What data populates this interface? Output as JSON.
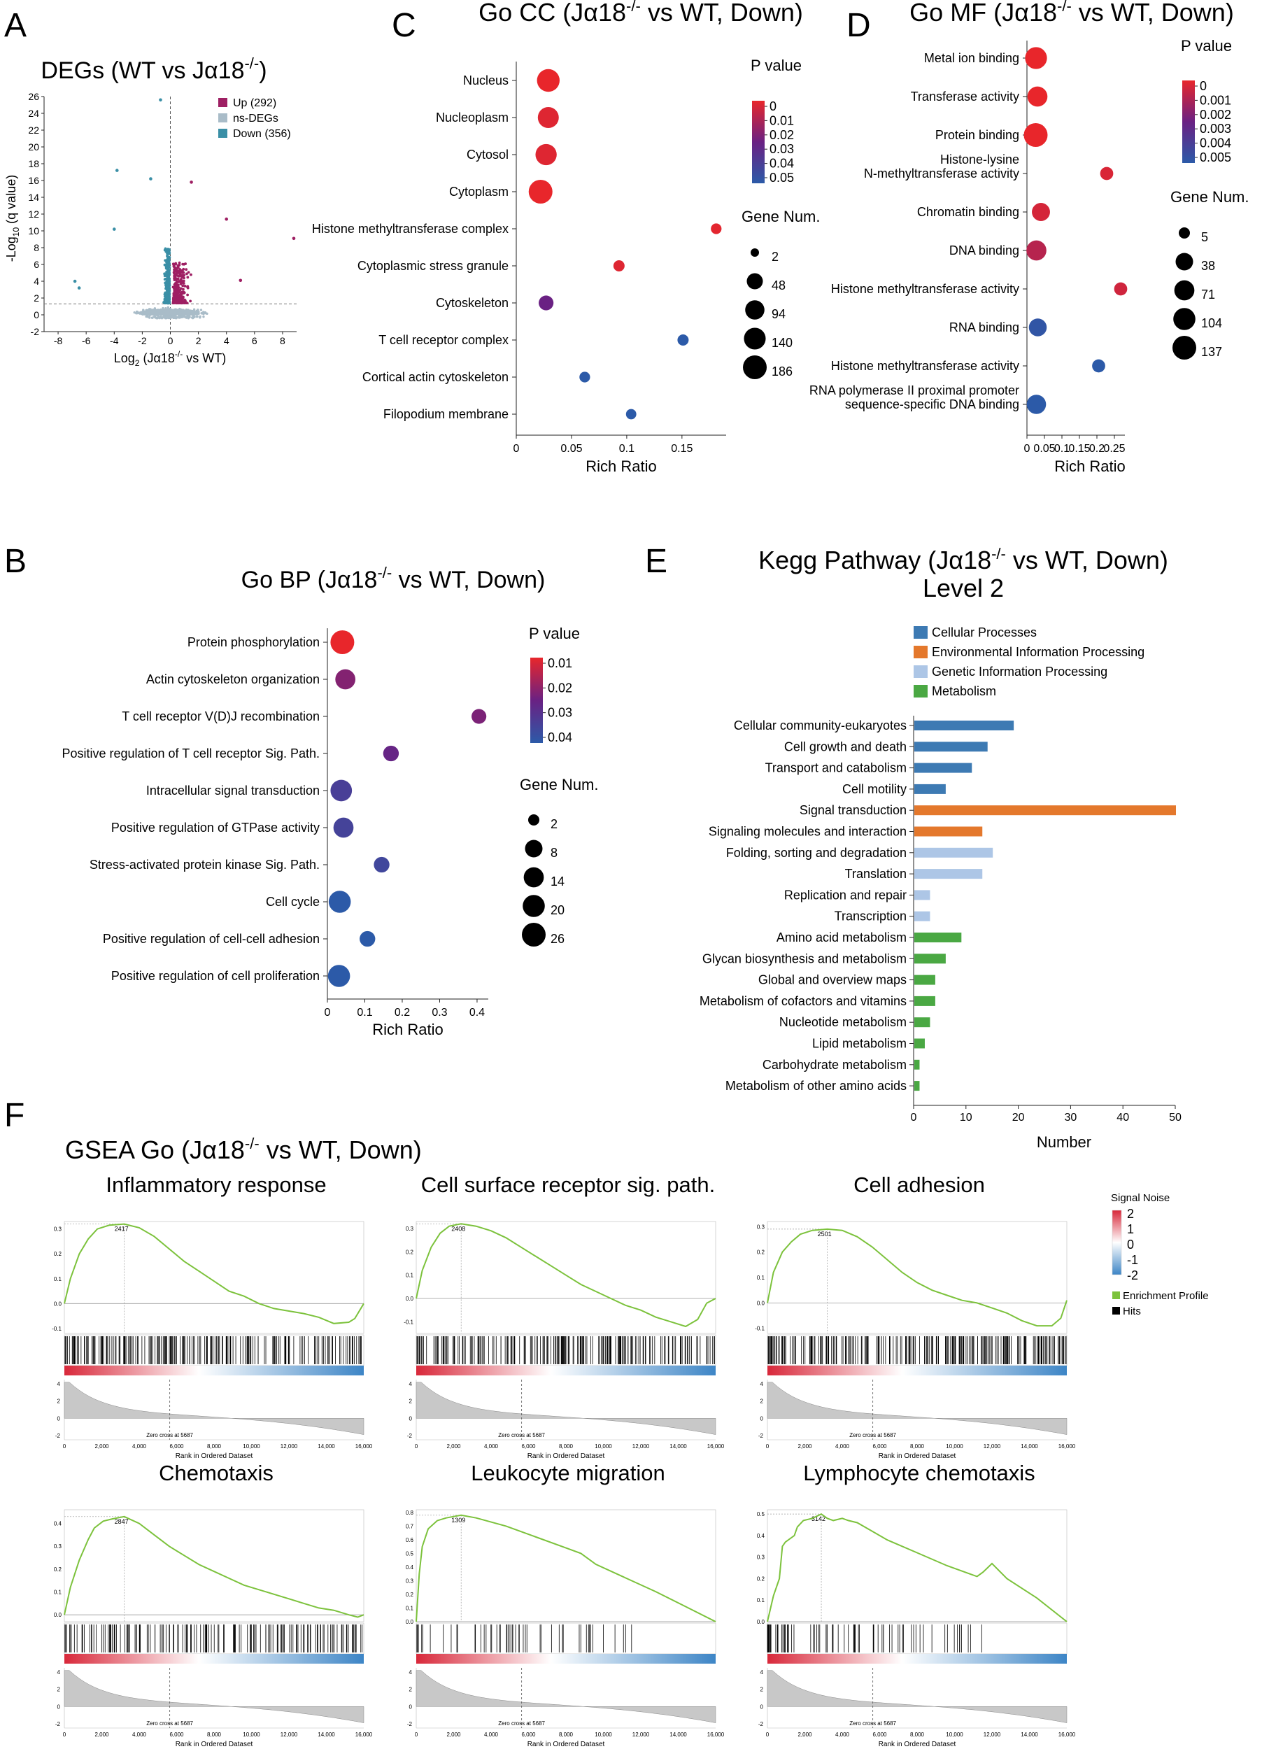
{
  "figure": {
    "panel_letters": [
      "A",
      "B",
      "C",
      "D",
      "E",
      "F"
    ]
  },
  "colors": {
    "up": "#9e1f63",
    "ns": "#a9bcc8",
    "down": "#3a8fa6",
    "cellular": "#3d7ab3",
    "environmental": "#e4782c",
    "genetic": "#adc6e6",
    "metabolism": "#4aa843",
    "enrichment": "#7cc23c",
    "red": "#e8262b",
    "blue": "#2c4f9e",
    "purple": "#6a2183"
  },
  "chart_data": [
    {
      "id": "A",
      "type": "scatter",
      "title": "DEGs (WT vs Jα18",
      "title_sup": "-/-",
      "title_end": ")",
      "xlabel_pre": "Log",
      "xlabel_sub": "2",
      "xlabel_post": " (Jα18",
      "xlabel_sup": "-/-",
      "xlabel_end": " vs WT)",
      "ylabel_pre": "-Log",
      "ylabel_sub": "10",
      "ylabel_post": " (q value)",
      "xlim": [
        -9,
        9
      ],
      "ylim": [
        -2,
        26
      ],
      "xticks": [
        -8,
        -6,
        -4,
        -2,
        0,
        2,
        4,
        6,
        8
      ],
      "yticks": [
        -2,
        0,
        2,
        4,
        6,
        8,
        10,
        12,
        14,
        16,
        18,
        20,
        22,
        24,
        26
      ],
      "threshold_y": 1.3,
      "legend": [
        {
          "key": "up",
          "label": "Up (292)"
        },
        {
          "key": "ns",
          "label": "ns-DEGs"
        },
        {
          "key": "down",
          "label": "Down (356)"
        }
      ],
      "counts": {
        "up": 292,
        "down": 356
      },
      "highlight_points": [
        {
          "x": -0.7,
          "y": 25.6,
          "group": "down"
        },
        {
          "x": -3.8,
          "y": 17.2,
          "group": "down"
        },
        {
          "x": -1.4,
          "y": 16.2,
          "group": "down"
        },
        {
          "x": -4.0,
          "y": 10.2,
          "group": "down"
        },
        {
          "x": -6.8,
          "y": 4.0,
          "group": "down"
        },
        {
          "x": -6.5,
          "y": 3.2,
          "group": "down"
        },
        {
          "x": 1.5,
          "y": 15.8,
          "group": "up"
        },
        {
          "x": 4.0,
          "y": 11.4,
          "group": "up"
        },
        {
          "x": 8.8,
          "y": 9.1,
          "group": "up"
        },
        {
          "x": 5.0,
          "y": 4.1,
          "group": "up"
        }
      ]
    },
    {
      "id": "C",
      "type": "scatter",
      "title": "Go CC (Jα18",
      "title_sup": "-/-",
      "title_end": " vs WT, Down)",
      "xlabel": "Rich Ratio",
      "xlim": [
        0,
        0.19
      ],
      "xticks": [
        0,
        0.05,
        0.1,
        0.15
      ],
      "categories": [
        "Nucleus",
        "Nucleoplasm",
        "Cytosol",
        "Cytoplasm",
        "Histone methyltransferase complex",
        "Cytoplasmic stress granule",
        "Cytoskeleton",
        "T cell receptor complex",
        "Cortical actin cytoskeleton",
        "Filopodium membrane"
      ],
      "values": [
        0.029,
        0.029,
        0.027,
        0.022,
        0.181,
        0.093,
        0.027,
        0.151,
        0.062,
        0.104
      ],
      "p_values": [
        0.0,
        0.002,
        0.002,
        0.0,
        0.001,
        0.002,
        0.025,
        0.05,
        0.05,
        0.05
      ],
      "gene_num": [
        160,
        125,
        130,
        186,
        6,
        8,
        34,
        8,
        6,
        5
      ],
      "color_title": "P value",
      "color_ticks": [
        "0",
        "0.01",
        "0.02",
        "0.03",
        "0.04",
        "0.05"
      ],
      "color_range": [
        0,
        0.05
      ],
      "size_title": "Gene Num.",
      "size_ticks": [
        "2",
        "48",
        "94",
        "140",
        "186"
      ],
      "size_range": [
        2,
        186
      ]
    },
    {
      "id": "D",
      "type": "scatter",
      "title": "Go MF (Jα18",
      "title_sup": "-/-",
      "title_end": " vs WT, Down)",
      "xlabel": "Rich Ratio",
      "xlim": [
        0,
        0.28
      ],
      "xticks": [
        0,
        0.05,
        0.1,
        0.15,
        0.2,
        0.25
      ],
      "xtick_labels": [
        "0",
        "0.05",
        "0.1",
        "0.15",
        "0.2",
        "0.25"
      ],
      "categories": [
        [
          "Metal ion binding"
        ],
        [
          "Transferase activity"
        ],
        [
          "Protein binding"
        ],
        [
          "Histone-lysine",
          "N-methyltransferase activity"
        ],
        [
          "Chromatin binding"
        ],
        [
          "DNA binding"
        ],
        [
          "Histone methyltransferase activity"
        ],
        [
          "RNA binding"
        ],
        [
          "Histone methyltransferase activity"
        ],
        [
          "RNA polymerase II proximal promoter",
          "sequence-specific DNA binding"
        ]
      ],
      "values": [
        0.026,
        0.03,
        0.025,
        0.228,
        0.04,
        0.027,
        0.268,
        0.031,
        0.205,
        0.027
      ],
      "p_values": [
        0.0,
        0.0,
        0.0,
        0.0003,
        0.0004,
        0.001,
        0.0005,
        0.0048,
        0.005,
        0.005
      ],
      "gene_num": [
        100,
        70,
        137,
        8,
        45,
        70,
        8,
        42,
        8,
        60
      ],
      "color_title": "P value",
      "color_ticks": [
        "0",
        "0.001",
        "0.002",
        "0.003",
        "0.004",
        "0.005"
      ],
      "color_range": [
        0,
        0.005
      ],
      "size_title": "Gene Num.",
      "size_ticks": [
        "5",
        "38",
        "71",
        "104",
        "137"
      ],
      "size_range": [
        5,
        137
      ]
    },
    {
      "id": "B",
      "type": "scatter",
      "title": "Go BP (Jα18",
      "title_sup": "-/-",
      "title_end": " vs WT, Down)",
      "xlabel": "Rich Ratio",
      "xlim": [
        0,
        0.43
      ],
      "xticks": [
        0,
        0.1,
        0.2,
        0.3,
        0.4
      ],
      "categories": [
        "Protein phosphorylation",
        "Actin cytoskeleton organization",
        "T cell receptor V(D)J recombination",
        "Positive regulation of T cell receptor Sig. Path.",
        "Intracellular signal transduction",
        "Positive regulation of GTPase activity",
        "Stress-activated protein kinase Sig. Path.",
        "Cell cycle",
        "Positive regulation of cell-cell adhesion",
        "Positive regulation of cell proliferation"
      ],
      "values": [
        0.04,
        0.048,
        0.405,
        0.17,
        0.037,
        0.043,
        0.145,
        0.033,
        0.107,
        0.031
      ],
      "p_values": [
        0.01,
        0.022,
        0.023,
        0.026,
        0.033,
        0.034,
        0.035,
        0.04,
        0.04,
        0.04
      ],
      "gene_num": [
        26,
        14,
        4,
        5,
        18,
        14,
        5,
        20,
        5,
        20
      ],
      "color_title": "P value",
      "color_ticks": [
        "0.01",
        "0.02",
        "0.03",
        "0.04"
      ],
      "color_range": [
        0.01,
        0.04
      ],
      "size_title": "Gene Num.",
      "size_ticks": [
        "2",
        "8",
        "14",
        "20",
        "26"
      ],
      "size_range": [
        2,
        26
      ]
    },
    {
      "id": "E",
      "type": "bar",
      "title": "Kegg Pathway (Jα18",
      "title_sup": "-/-",
      "title_end": " vs WT, Down)",
      "subtitle": "Level 2",
      "xlabel": "Number",
      "xlim": [
        0,
        50
      ],
      "xticks": [
        0,
        10,
        20,
        30,
        40,
        50
      ],
      "legend": [
        {
          "key": "cellular",
          "label": "Cellular Processes"
        },
        {
          "key": "environmental",
          "label": "Environmental Information Processing"
        },
        {
          "key": "genetic",
          "label": "Genetic Information Processing"
        },
        {
          "key": "metabolism",
          "label": "Metabolism"
        }
      ],
      "categories": [
        "Cellular community-eukaryotes",
        "Cell growth and death",
        "Transport and catabolism",
        "Cell motility",
        "Signal transduction",
        "Signaling molecules and interaction",
        "Folding, sorting and degradation",
        "Translation",
        "Replication and repair",
        "Transcription",
        "Amino acid metabolism",
        "Glycan biosynthesis and metabolism",
        "Global and overview maps",
        "Metabolism of cofactors and vitamins",
        "Nucleotide metabolism",
        "Lipid metabolism",
        "Carbohydrate metabolism",
        "Metabolism of other amino acids"
      ],
      "values": [
        19,
        14,
        11,
        6,
        50,
        13,
        15,
        13,
        3,
        3,
        9,
        6,
        4,
        4,
        3,
        2,
        1,
        1
      ],
      "groups": [
        "cellular",
        "cellular",
        "cellular",
        "cellular",
        "environmental",
        "environmental",
        "genetic",
        "genetic",
        "genetic",
        "genetic",
        "metabolism",
        "metabolism",
        "metabolism",
        "metabolism",
        "metabolism",
        "metabolism",
        "metabolism",
        "metabolism"
      ]
    },
    {
      "id": "F",
      "type": "line",
      "title": "GSEA Go (Jα18",
      "title_sup": "-/-",
      "title_end": " vs WT, Down)",
      "rank_xlabel": "Rank in Ordered Dataset",
      "rank_xticks": [
        "0",
        "2,000",
        "4,000",
        "6,000",
        "8,000",
        "10,000",
        "12,000",
        "14,000",
        "16,000"
      ],
      "zero_cross_label": "Zero cross at 5687",
      "metric_yticks": [
        "4",
        "2",
        "0",
        "-2"
      ],
      "legend": {
        "title": "Signal Noise",
        "scale_ticks": [
          "2",
          "1",
          "0",
          "-1",
          "-2"
        ],
        "profile_label": "Enrichment Profile",
        "hits_label": "Hits"
      },
      "series": [
        {
          "name": "Inflammatory response",
          "peak_label": "2417",
          "yticks": [
            "0.3",
            "0.2",
            "0.1",
            "0.0",
            "-0.1"
          ],
          "ylim": [
            -0.12,
            0.33
          ],
          "x": [
            0,
            0.02,
            0.05,
            0.08,
            0.11,
            0.15,
            0.2,
            0.25,
            0.3,
            0.35,
            0.4,
            0.45,
            0.5,
            0.55,
            0.6,
            0.65,
            0.7,
            0.75,
            0.8,
            0.85,
            0.9,
            0.95,
            0.97,
            1.0
          ],
          "y": [
            0,
            0.1,
            0.2,
            0.26,
            0.3,
            0.315,
            0.32,
            0.305,
            0.27,
            0.22,
            0.17,
            0.13,
            0.09,
            0.05,
            0.03,
            0.0,
            -0.02,
            -0.03,
            -0.04,
            -0.055,
            -0.08,
            -0.075,
            -0.06,
            0.0
          ],
          "hit_density": 0.85
        },
        {
          "name": "Cell surface receptor sig. path.",
          "peak_label": "2408",
          "yticks": [
            "0.3",
            "0.2",
            "0.1",
            "0.0",
            "-0.1"
          ],
          "ylim": [
            -0.15,
            0.33
          ],
          "x": [
            0,
            0.02,
            0.05,
            0.08,
            0.11,
            0.15,
            0.2,
            0.25,
            0.3,
            0.35,
            0.4,
            0.45,
            0.5,
            0.55,
            0.6,
            0.65,
            0.7,
            0.75,
            0.8,
            0.85,
            0.9,
            0.94,
            0.97,
            1.0
          ],
          "y": [
            0,
            0.12,
            0.22,
            0.28,
            0.31,
            0.32,
            0.31,
            0.29,
            0.26,
            0.22,
            0.18,
            0.14,
            0.1,
            0.06,
            0.03,
            0.0,
            -0.03,
            -0.05,
            -0.08,
            -0.1,
            -0.12,
            -0.09,
            -0.02,
            0.0
          ],
          "hit_density": 0.8
        },
        {
          "name": "Cell adhesion",
          "peak_label": "2501",
          "yticks": [
            "0.3",
            "0.2",
            "0.1",
            "0.0",
            "-0.1"
          ],
          "ylim": [
            -0.12,
            0.32
          ],
          "x": [
            0,
            0.02,
            0.05,
            0.08,
            0.11,
            0.15,
            0.2,
            0.25,
            0.3,
            0.35,
            0.4,
            0.45,
            0.5,
            0.55,
            0.6,
            0.65,
            0.7,
            0.75,
            0.8,
            0.85,
            0.9,
            0.95,
            0.98,
            1.0
          ],
          "y": [
            0,
            0.12,
            0.2,
            0.24,
            0.27,
            0.285,
            0.29,
            0.285,
            0.26,
            0.22,
            0.17,
            0.12,
            0.08,
            0.05,
            0.03,
            0.01,
            0.0,
            -0.02,
            -0.04,
            -0.07,
            -0.09,
            -0.09,
            -0.06,
            0.01
          ],
          "hit_density": 0.95
        },
        {
          "name": "Chemotaxis",
          "peak_label": "2847",
          "yticks": [
            "0.4",
            "0.3",
            "0.2",
            "0.1",
            "0.0"
          ],
          "ylim": [
            -0.03,
            0.46
          ],
          "x": [
            0,
            0.02,
            0.05,
            0.08,
            0.1,
            0.13,
            0.16,
            0.2,
            0.25,
            0.3,
            0.35,
            0.4,
            0.45,
            0.5,
            0.55,
            0.6,
            0.65,
            0.7,
            0.75,
            0.8,
            0.85,
            0.9,
            0.95,
            0.98,
            1.0
          ],
          "y": [
            0,
            0.12,
            0.24,
            0.33,
            0.38,
            0.41,
            0.42,
            0.43,
            0.4,
            0.35,
            0.3,
            0.26,
            0.22,
            0.19,
            0.16,
            0.13,
            0.11,
            0.09,
            0.07,
            0.05,
            0.03,
            0.02,
            0.0,
            -0.01,
            0.0
          ],
          "hit_density": 0.6
        },
        {
          "name": "Leukocyte migration",
          "peak_label": "1309",
          "yticks": [
            "0.8",
            "0.7",
            "0.6",
            "0.5",
            "0.4",
            "0.3",
            "0.2",
            "0.1",
            "0.0"
          ],
          "ylim": [
            0,
            0.82
          ],
          "x": [
            0,
            0.01,
            0.02,
            0.04,
            0.07,
            0.1,
            0.15,
            0.2,
            0.3,
            0.4,
            0.5,
            0.55,
            0.6,
            0.7,
            0.8,
            0.9,
            1.0
          ],
          "y": [
            0,
            0.35,
            0.55,
            0.68,
            0.74,
            0.76,
            0.78,
            0.76,
            0.7,
            0.62,
            0.54,
            0.5,
            0.42,
            0.32,
            0.22,
            0.11,
            0.0
          ],
          "hit_density": 0.2
        },
        {
          "name": "Lymphocyte chemotaxis",
          "peak_label": "3142",
          "yticks": [
            "0.5",
            "0.4",
            "0.3",
            "0.2",
            "0.1",
            "0.0"
          ],
          "ylim": [
            0,
            0.52
          ],
          "x": [
            0,
            0.02,
            0.04,
            0.05,
            0.06,
            0.09,
            0.1,
            0.12,
            0.15,
            0.18,
            0.2,
            0.22,
            0.25,
            0.27,
            0.3,
            0.35,
            0.4,
            0.5,
            0.6,
            0.68,
            0.7,
            0.72,
            0.75,
            0.8,
            0.9,
            1.0
          ],
          "y": [
            0,
            0.12,
            0.2,
            0.35,
            0.37,
            0.4,
            0.44,
            0.47,
            0.48,
            0.5,
            0.48,
            0.47,
            0.48,
            0.47,
            0.46,
            0.42,
            0.38,
            0.32,
            0.26,
            0.22,
            0.21,
            0.23,
            0.27,
            0.2,
            0.11,
            0.0
          ],
          "hit_density": 0.3
        }
      ]
    }
  ]
}
